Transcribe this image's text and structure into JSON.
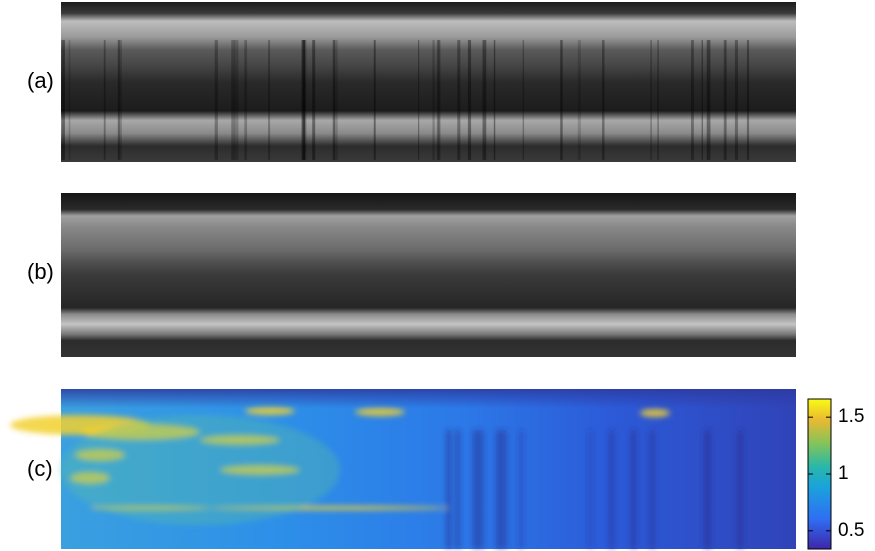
{
  "panels": [
    {
      "label": "(a)"
    },
    {
      "label": "(b)"
    },
    {
      "label": "(c)"
    }
  ],
  "colorbar": {
    "lim": [
      0.34,
      1.66
    ],
    "ticks": [
      0.5,
      1,
      1.5
    ]
  }
}
